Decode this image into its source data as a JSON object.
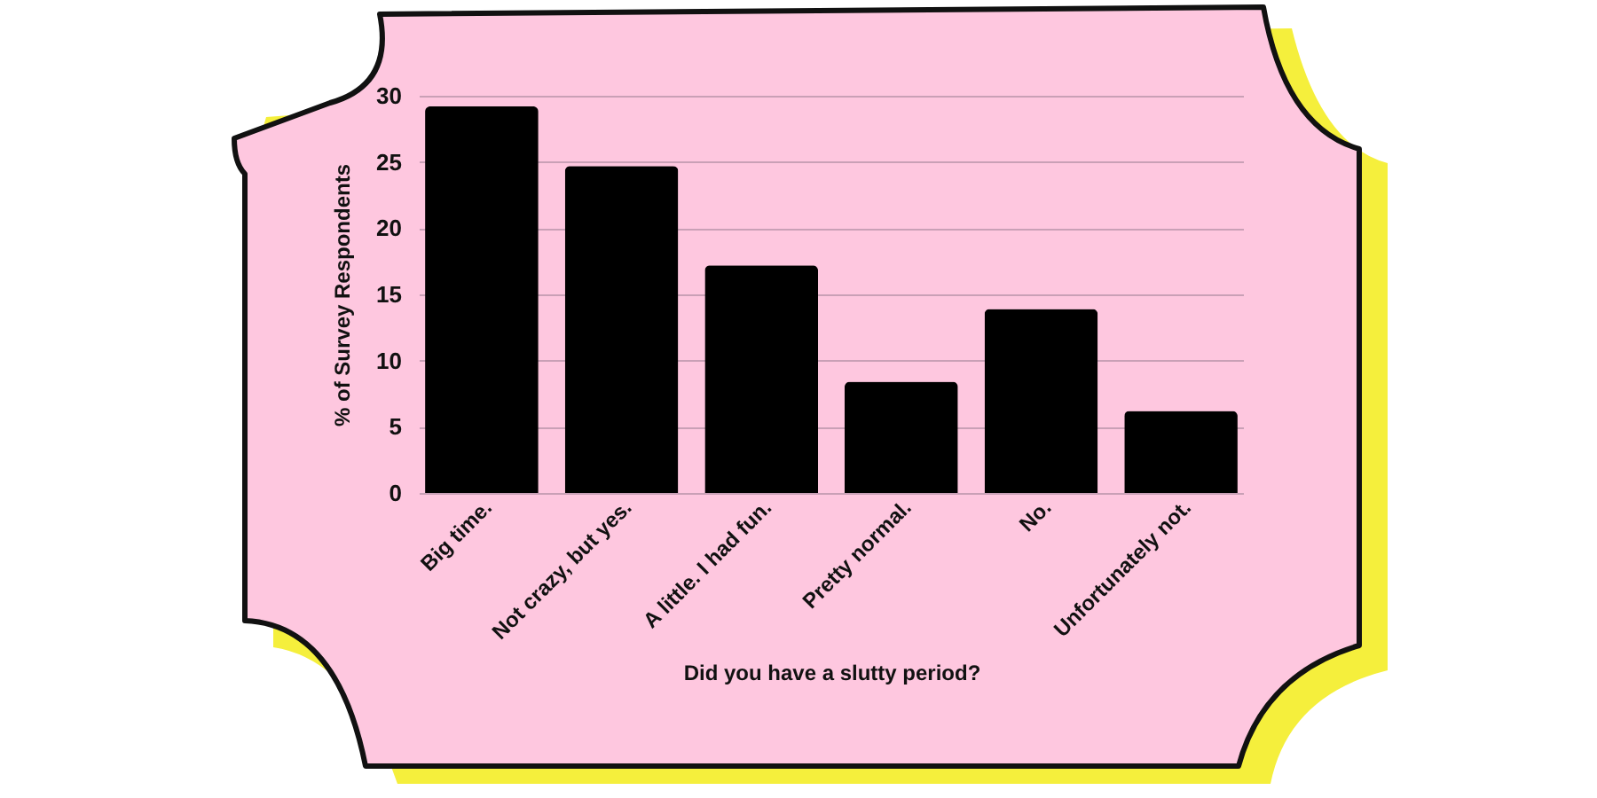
{
  "chart_data": {
    "type": "bar",
    "xlabel": "Did you have a slutty period?",
    "ylabel": "% of Survey Respondents",
    "categories": [
      "Big time.",
      "Not crazy, but yes.",
      "A little. I had fun.",
      "Pretty normal.",
      "No.",
      "Unfortunately not."
    ],
    "values": [
      29.2,
      24.7,
      17.2,
      8.4,
      13.9,
      6.2
    ],
    "color": "#000000",
    "ylim": [
      0,
      30
    ],
    "yticks": [
      0,
      5,
      10,
      15,
      20,
      25,
      30
    ],
    "grid": "y"
  }
}
